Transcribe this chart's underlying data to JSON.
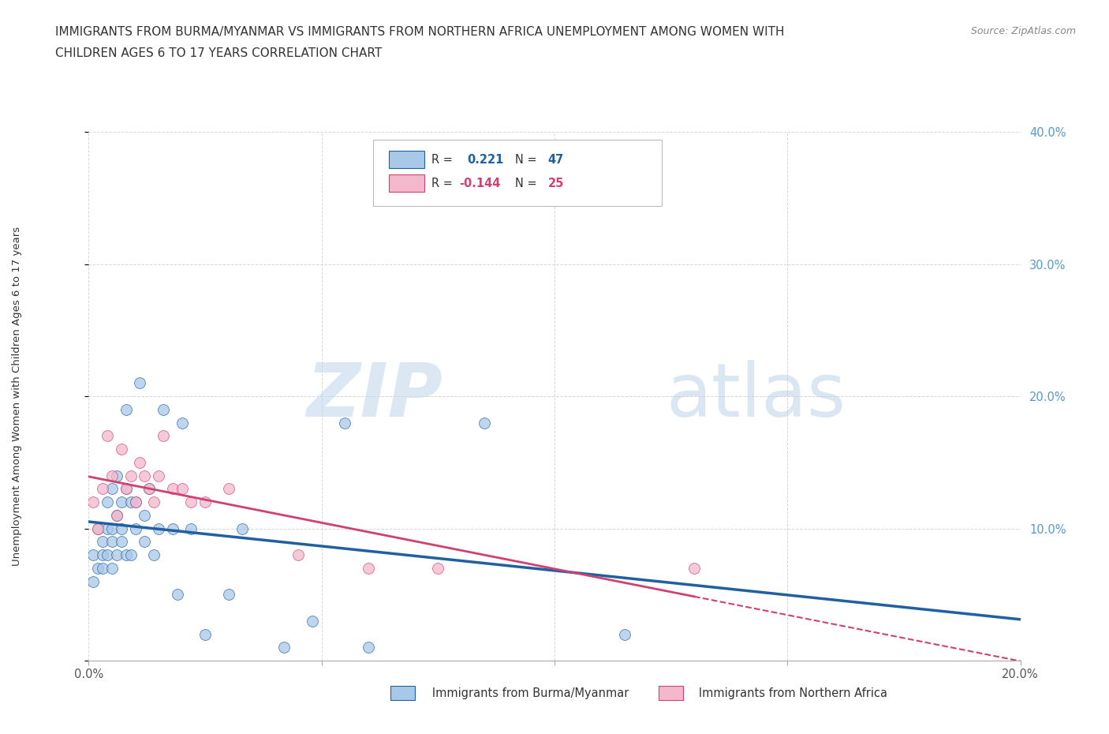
{
  "title_line1": "IMMIGRANTS FROM BURMA/MYANMAR VS IMMIGRANTS FROM NORTHERN AFRICA UNEMPLOYMENT AMONG WOMEN WITH",
  "title_line2": "CHILDREN AGES 6 TO 17 YEARS CORRELATION CHART",
  "source": "Source: ZipAtlas.com",
  "ylabel": "Unemployment Among Women with Children Ages 6 to 17 years",
  "xlim": [
    0.0,
    0.2
  ],
  "ylim": [
    0.0,
    0.4
  ],
  "color_burma": "#a8c8e8",
  "color_northern_africa": "#f4b8cc",
  "color_line_burma": "#2060a0",
  "color_line_northern_africa": "#d04070",
  "R_burma": 0.221,
  "N_burma": 47,
  "R_northern_africa": -0.144,
  "N_northern_africa": 25,
  "burma_x": [
    0.001,
    0.001,
    0.002,
    0.002,
    0.003,
    0.003,
    0.003,
    0.004,
    0.004,
    0.004,
    0.005,
    0.005,
    0.005,
    0.005,
    0.006,
    0.006,
    0.006,
    0.007,
    0.007,
    0.007,
    0.008,
    0.008,
    0.008,
    0.009,
    0.009,
    0.01,
    0.01,
    0.011,
    0.012,
    0.012,
    0.013,
    0.014,
    0.015,
    0.016,
    0.018,
    0.019,
    0.02,
    0.022,
    0.025,
    0.03,
    0.033,
    0.042,
    0.048,
    0.055,
    0.06,
    0.085,
    0.115
  ],
  "burma_y": [
    0.06,
    0.08,
    0.07,
    0.1,
    0.08,
    0.09,
    0.07,
    0.08,
    0.1,
    0.12,
    0.13,
    0.1,
    0.09,
    0.07,
    0.11,
    0.14,
    0.08,
    0.09,
    0.12,
    0.1,
    0.13,
    0.19,
    0.08,
    0.12,
    0.08,
    0.1,
    0.12,
    0.21,
    0.09,
    0.11,
    0.13,
    0.08,
    0.1,
    0.19,
    0.1,
    0.05,
    0.18,
    0.1,
    0.02,
    0.05,
    0.1,
    0.01,
    0.03,
    0.18,
    0.01,
    0.18,
    0.02
  ],
  "northern_africa_x": [
    0.001,
    0.002,
    0.003,
    0.004,
    0.005,
    0.006,
    0.007,
    0.008,
    0.009,
    0.01,
    0.011,
    0.012,
    0.013,
    0.014,
    0.015,
    0.016,
    0.018,
    0.02,
    0.022,
    0.025,
    0.03,
    0.045,
    0.06,
    0.075,
    0.13
  ],
  "northern_africa_y": [
    0.12,
    0.1,
    0.13,
    0.17,
    0.14,
    0.11,
    0.16,
    0.13,
    0.14,
    0.12,
    0.15,
    0.14,
    0.13,
    0.12,
    0.14,
    0.17,
    0.13,
    0.13,
    0.12,
    0.12,
    0.13,
    0.08,
    0.07,
    0.07,
    0.07
  ],
  "watermark_zip": "ZIP",
  "watermark_atlas": "atlas",
  "background_color": "#ffffff",
  "grid_color": "#cccccc"
}
